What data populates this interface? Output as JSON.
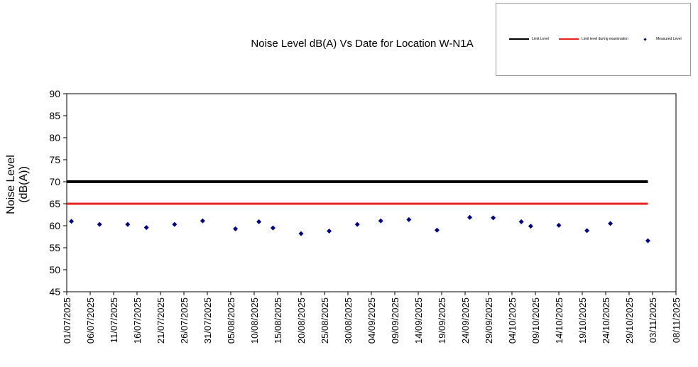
{
  "chart_data": {
    "type": "line",
    "title": "Noise Level dB(A) Vs Date for Location W-N1A",
    "ylabel_lines": [
      "Noise Level",
      "(dB(A))"
    ],
    "xlabel": "",
    "ylim": [
      45,
      90
    ],
    "y_ticks": [
      "45",
      "50",
      "55",
      "60",
      "65",
      "70",
      "75",
      "80",
      "85",
      "90"
    ],
    "x_ticks": [
      "01/07/2025",
      "06/07/2025",
      "11/07/2025",
      "16/07/2025",
      "21/07/2025",
      "26/07/2025",
      "31/07/2025",
      "05/08/2025",
      "10/08/2025",
      "15/08/2025",
      "20/08/2025",
      "25/08/2025",
      "30/08/2025",
      "04/09/2025",
      "09/09/2025",
      "14/09/2025",
      "19/09/2025",
      "24/09/2025",
      "29/09/2025",
      "04/10/2025",
      "09/10/2025",
      "14/10/2025",
      "19/10/2025",
      "24/10/2025",
      "29/10/2025",
      "03/11/2025",
      "08/11/2025"
    ],
    "xlim": [
      "01/07/2025",
      "08/11/2025"
    ],
    "grid": false,
    "legend_position": "top-right",
    "series": [
      {
        "name": "Limit Level",
        "kind": "line",
        "color": "#000000",
        "points": [
          {
            "x": "01/07/2025",
            "y": 70
          },
          {
            "x": "02/11/2025",
            "y": 70
          }
        ]
      },
      {
        "name": "Limit level during examination",
        "kind": "line",
        "color": "#e8231e",
        "points": [
          {
            "x": "01/07/2025",
            "y": 65
          },
          {
            "x": "02/11/2025",
            "y": 65
          }
        ]
      },
      {
        "name": "Measured Level",
        "kind": "scatter",
        "color": "#000080",
        "points": [
          {
            "x": "02/07/2025",
            "y": 61.0
          },
          {
            "x": "08/07/2025",
            "y": 60.3
          },
          {
            "x": "14/07/2025",
            "y": 60.3
          },
          {
            "x": "18/07/2025",
            "y": 59.6
          },
          {
            "x": "24/07/2025",
            "y": 60.3
          },
          {
            "x": "30/07/2025",
            "y": 61.1
          },
          {
            "x": "06/08/2025",
            "y": 59.3
          },
          {
            "x": "11/08/2025",
            "y": 60.9
          },
          {
            "x": "14/08/2025",
            "y": 59.5
          },
          {
            "x": "20/08/2025",
            "y": 58.2
          },
          {
            "x": "26/08/2025",
            "y": 58.8
          },
          {
            "x": "01/09/2025",
            "y": 60.3
          },
          {
            "x": "06/09/2025",
            "y": 61.1
          },
          {
            "x": "12/09/2025",
            "y": 61.4
          },
          {
            "x": "18/09/2025",
            "y": 59.0
          },
          {
            "x": "25/09/2025",
            "y": 61.9
          },
          {
            "x": "30/09/2025",
            "y": 61.8
          },
          {
            "x": "06/10/2025",
            "y": 60.9
          },
          {
            "x": "08/10/2025",
            "y": 59.9
          },
          {
            "x": "14/10/2025",
            "y": 60.1
          },
          {
            "x": "20/10/2025",
            "y": 58.9
          },
          {
            "x": "25/10/2025",
            "y": 60.5
          },
          {
            "x": "02/11/2025",
            "y": 56.6
          }
        ]
      }
    ]
  },
  "legend": {
    "items": [
      "Limit Level",
      "Limit level during examination",
      "Measured Level"
    ]
  },
  "colors": {
    "limit": "#000000",
    "exam_limit": "#e8231e",
    "measured": "#000080"
  }
}
